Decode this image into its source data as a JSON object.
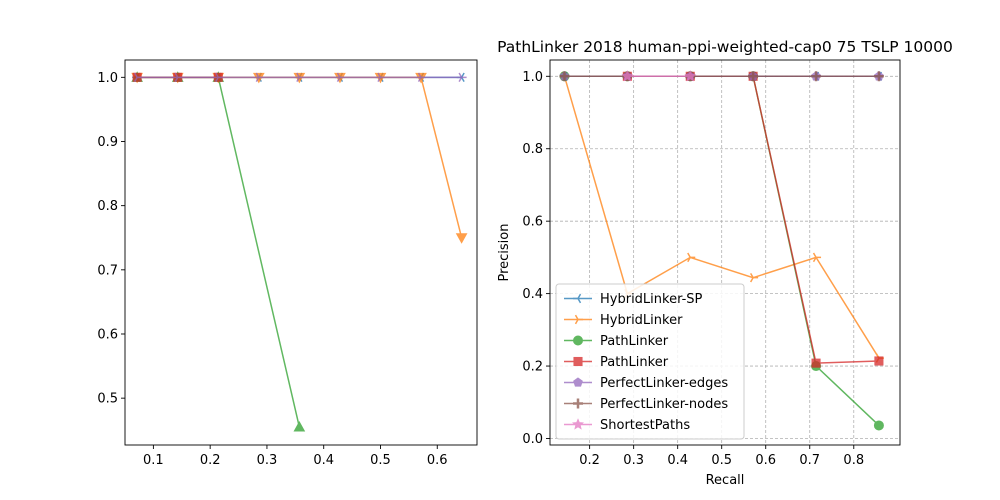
{
  "chart_data": [
    {
      "type": "line",
      "title": "",
      "xlabel": "",
      "ylabel": "",
      "xlim": [
        0.05,
        0.67
      ],
      "ylim": [
        0.427,
        1.027
      ],
      "xticks": [
        "0.1",
        "0.2",
        "0.3",
        "0.4",
        "0.5",
        "0.6"
      ],
      "yticks": [
        "0.5",
        "0.6",
        "0.7",
        "0.8",
        "0.9",
        "1.0"
      ],
      "grid": false,
      "series": [
        {
          "label": "HybridLinker-SP",
          "color": "#1f77b4",
          "marker": "tri_left",
          "x": [
            0.0714,
            0.1429,
            0.2143,
            0.2857,
            0.3571,
            0.4286,
            0.5,
            0.5714,
            0.6429
          ],
          "y": [
            1,
            1,
            1,
            1,
            1,
            1,
            1,
            1,
            1
          ]
        },
        {
          "label": "HybridLinker",
          "color": "#ff7f0e",
          "marker": "triangle_down",
          "x": [
            0.0714,
            0.1429,
            0.2143,
            0.2857,
            0.3571,
            0.4286,
            0.5,
            0.5714,
            0.6429
          ],
          "y": [
            1,
            1,
            1,
            1,
            1,
            1,
            1,
            1,
            0.75
          ]
        },
        {
          "label": "PathLinker",
          "color": "#2ca02c",
          "marker": "triangle_up",
          "x": [
            0.0714,
            0.1429,
            0.2143,
            0.3571
          ],
          "y": [
            1,
            1,
            1,
            0.455
          ]
        },
        {
          "label": "PathLinker",
          "color": "#d62728",
          "marker": "square",
          "x": [
            0.0714,
            0.1429,
            0.2143
          ],
          "y": [
            1,
            1,
            1
          ]
        },
        {
          "label": "PerfectLinker-edges",
          "color": "#9467bd",
          "marker": "tri_right",
          "x": [
            0.0714,
            0.1429,
            0.2143,
            0.2857,
            0.3571,
            0.4286,
            0.5,
            0.5714,
            0.6429
          ],
          "y": [
            1,
            1,
            1,
            1,
            1,
            1,
            1,
            1,
            1
          ]
        }
      ]
    },
    {
      "type": "line",
      "title": "PathLinker 2018 human-ppi-weighted-cap0 75 TSLP 10000",
      "xlabel": "Recall",
      "ylabel": "Precision",
      "xlim": [
        0.11,
        0.905
      ],
      "ylim": [
        -0.018,
        1.045
      ],
      "xticks": [
        "0.2",
        "0.3",
        "0.4",
        "0.5",
        "0.6",
        "0.7",
        "0.8"
      ],
      "yticks": [
        "0.0",
        "0.2",
        "0.4",
        "0.6",
        "0.8",
        "1.0"
      ],
      "grid": true,
      "legend_position": "lower-left",
      "series": [
        {
          "label": "HybridLinker-SP",
          "color": "#1f77b4",
          "marker": "tri_left",
          "x": [
            0.1429,
            0.2857,
            0.4286,
            0.5714,
            0.7143,
            0.8571
          ],
          "y": [
            1,
            1,
            1,
            1,
            1,
            1
          ]
        },
        {
          "label": "HybridLinker",
          "color": "#ff7f0e",
          "marker": "tri_right",
          "x": [
            0.1429,
            0.2857,
            0.4286,
            0.5714,
            0.7143,
            0.8571
          ],
          "y": [
            1,
            0.4,
            0.5,
            0.444,
            0.5,
            0.222
          ]
        },
        {
          "label": "PathLinker",
          "color": "#2ca02c",
          "marker": "circle",
          "x": [
            0.1429,
            0.2857,
            0.4286,
            0.5714,
            0.7143,
            0.8571
          ],
          "y": [
            1,
            1,
            1,
            1,
            0.2,
            0.036
          ]
        },
        {
          "label": "PathLinker",
          "color": "#d62728",
          "marker": "square",
          "x": [
            0.2857,
            0.4286,
            0.5714,
            0.7143,
            0.8571
          ],
          "y": [
            1,
            1,
            1,
            0.208,
            0.214
          ]
        },
        {
          "label": "PerfectLinker-edges",
          "color": "#9467bd",
          "marker": "pentagon",
          "x": [
            0.1429,
            0.2857,
            0.4286,
            0.5714,
            0.7143,
            0.8571
          ],
          "y": [
            1,
            1,
            1,
            1,
            1,
            1
          ]
        },
        {
          "label": "PerfectLinker-nodes",
          "color": "#8c564b",
          "marker": "plus",
          "x": [
            0.1429,
            0.2857,
            0.4286,
            0.5714,
            0.7143,
            0.8571
          ],
          "y": [
            1,
            1,
            1,
            1,
            1,
            1
          ]
        },
        {
          "label": "ShortestPaths",
          "color": "#e377c2",
          "marker": "star",
          "x": [
            0.2857,
            0.4286
          ],
          "y": [
            1,
            1
          ]
        }
      ]
    }
  ]
}
